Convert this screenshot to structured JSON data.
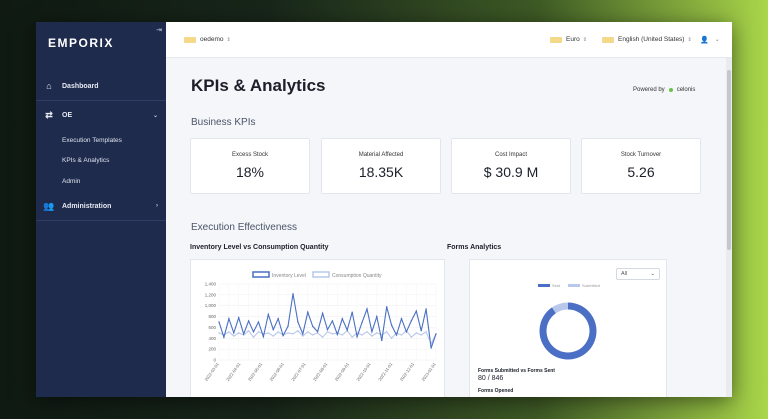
{
  "sidebar": {
    "logo": "EMPORIX",
    "collapse_icon": "collapse-icon",
    "items": [
      {
        "label": "Dashboard",
        "icon": "home-icon"
      },
      {
        "label": "OE",
        "icon": "swap-icon"
      },
      {
        "label": "Administration",
        "icon": "users-icon"
      }
    ],
    "sub_items": [
      "Execution Templates",
      "KPIs & Analytics",
      "Admin"
    ]
  },
  "topbar": {
    "tenant": "oedemo",
    "currency": "Euro",
    "language": "English (United States)",
    "user_icon": "user-icon"
  },
  "main": {
    "title": "KPIs & Analytics",
    "powered_by": "Powered by",
    "powered_brand": "celonis",
    "business_kpis_title": "Business KPIs",
    "kpis": [
      {
        "label": "Excess Stock",
        "value": "18%"
      },
      {
        "label": "Material Affected",
        "value": "18.35K"
      },
      {
        "label": "Cost Impact",
        "value": "$ 30.9 M"
      },
      {
        "label": "Stock Turnover",
        "value": "5.26"
      }
    ],
    "execution_title": "Execution Effectiveness",
    "inventory_panel_title": "Inventory Level vs Consumption Quantity",
    "forms_panel_title": "Forms Analytics",
    "forms": {
      "select_value": "All",
      "submitted_label": "Forms Submitted vs Forms Sent",
      "submitted_value": "80 / 846",
      "opened_label": "Forms Opened"
    }
  },
  "chart_data": [
    {
      "type": "line",
      "title": "",
      "legend_placement": "top",
      "ylim": [
        0,
        1400
      ],
      "y_ticks": [
        "1,400",
        "1,200",
        "1,000",
        "800",
        "600",
        "400",
        "200",
        "0"
      ],
      "x_ticks": [
        "2022-03-01",
        "2022-04-01",
        "2022-05-01",
        "2022-06-01",
        "2022-07-01",
        "2022-08-01",
        "2022-09-01",
        "2022-10-01",
        "2022-11-01",
        "2022-12-01",
        "2023-01-01"
      ],
      "series": [
        {
          "name": "Inventory Level",
          "color": "#4a6fc4",
          "values": [
            700,
            420,
            760,
            500,
            780,
            480,
            720,
            520,
            700,
            430,
            840,
            560,
            760,
            450,
            620,
            1220,
            700,
            480,
            880,
            620,
            520,
            860,
            560,
            720,
            470,
            760,
            550,
            880,
            430,
            690,
            940,
            520,
            800,
            360,
            980,
            640,
            460,
            760,
            520,
            720,
            900,
            540,
            940,
            220,
            480
          ]
        },
        {
          "name": "Consumption Quantity",
          "color": "#b9c7ea",
          "values": [
            500,
            460,
            520,
            440,
            500,
            460,
            540,
            420,
            520,
            480,
            500,
            440,
            520,
            460,
            500,
            480,
            540,
            440,
            520,
            460,
            500,
            420,
            520,
            480,
            500,
            460,
            540,
            420,
            500,
            460,
            520,
            440,
            500,
            460,
            520,
            400,
            500,
            460,
            540,
            420,
            500,
            460,
            520,
            300,
            480
          ]
        }
      ]
    },
    {
      "type": "pie",
      "legend_placement": "top",
      "labels": [
        "Sent",
        "Submitted"
      ],
      "values": [
        90.5,
        9.5
      ],
      "colors": [
        "#4a6fc4",
        "#b9c7ea"
      ]
    }
  ]
}
